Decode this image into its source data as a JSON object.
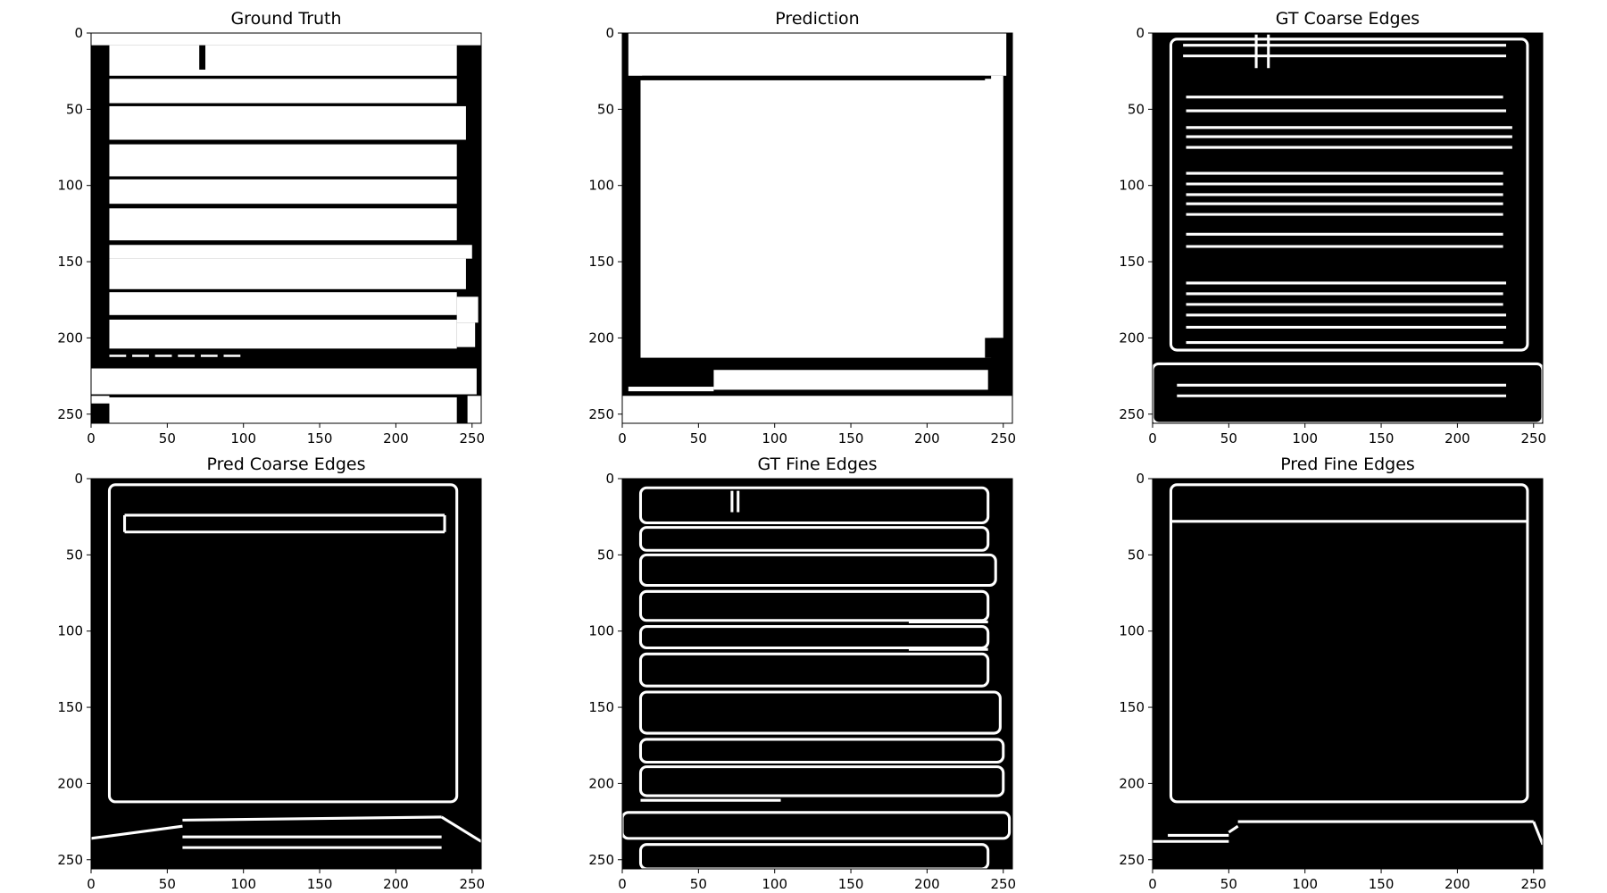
{
  "figure": {
    "background": "#ffffff",
    "image_colors": {
      "background": "#000000",
      "foreground": "#ffffff"
    }
  },
  "chart_data": [
    {
      "type": "heatmap",
      "title": "Ground Truth",
      "xlabel": "",
      "ylabel": "",
      "xlim": [
        0,
        256
      ],
      "ylim": [
        256,
        0
      ],
      "x_ticks": [
        "0",
        "50",
        "100",
        "150",
        "200",
        "250"
      ],
      "y_ticks": [
        "0",
        "50",
        "100",
        "150",
        "200",
        "250"
      ],
      "mode": "fill",
      "regions": [
        [
          0,
          0,
          256,
          8
        ],
        [
          12,
          8,
          240,
          28
        ],
        [
          12,
          30,
          240,
          46
        ],
        [
          12,
          48,
          246,
          70
        ],
        [
          12,
          73,
          240,
          94
        ],
        [
          12,
          96,
          240,
          112
        ],
        [
          12,
          115,
          240,
          136
        ],
        [
          12,
          139,
          250,
          148
        ],
        [
          12,
          148,
          246,
          168
        ],
        [
          12,
          170,
          240,
          185
        ],
        [
          12,
          188,
          240,
          207
        ],
        [
          240,
          173,
          254,
          190
        ],
        [
          240,
          190,
          252,
          206
        ],
        [
          0,
          220,
          253,
          237
        ],
        [
          12,
          239,
          240,
          256
        ],
        [
          0,
          238,
          12,
          243
        ],
        [
          247,
          238,
          256,
          256
        ]
      ],
      "holes": [
        [
          71,
          8,
          75,
          24
        ]
      ],
      "dashes": {
        "y": 211,
        "x_start": 12,
        "x_end": 102,
        "dash": 11,
        "gap": 4
      }
    },
    {
      "type": "heatmap",
      "title": "Prediction",
      "xlabel": "",
      "ylabel": "",
      "xlim": [
        0,
        256
      ],
      "ylim": [
        256,
        0
      ],
      "x_ticks": [
        "0",
        "50",
        "100",
        "150",
        "200",
        "250"
      ],
      "y_ticks": [
        "0",
        "50",
        "100",
        "150",
        "200",
        "250"
      ],
      "mode": "fill",
      "regions": [
        [
          4,
          0,
          252,
          28
        ],
        [
          12,
          31,
          242,
          213
        ],
        [
          238,
          28,
          250,
          200
        ],
        [
          6,
          0,
          12,
          20
        ],
        [
          60,
          221,
          240,
          234
        ],
        [
          4,
          232,
          60,
          235
        ],
        [
          0,
          238,
          256,
          256
        ]
      ],
      "holes": [
        [
          13,
          28,
          242,
          30
        ],
        [
          238,
          200,
          256,
          213
        ]
      ]
    },
    {
      "type": "heatmap",
      "title": "GT Coarse Edges",
      "xlabel": "",
      "ylabel": "",
      "xlim": [
        0,
        256
      ],
      "ylim": [
        256,
        0
      ],
      "x_ticks": [
        "0",
        "50",
        "100",
        "150",
        "200",
        "250"
      ],
      "y_ticks": [
        "0",
        "50",
        "100",
        "150",
        "200",
        "250"
      ],
      "mode": "edges",
      "stroke": 3,
      "loops": [
        [
          12,
          4,
          246,
          208
        ],
        [
          0,
          217,
          256,
          256
        ]
      ],
      "lines": [
        [
          20,
          8,
          232,
          8
        ],
        [
          20,
          15,
          232,
          15
        ],
        [
          22,
          42,
          230,
          42
        ],
        [
          22,
          51,
          232,
          51
        ],
        [
          22,
          62,
          236,
          62
        ],
        [
          22,
          68,
          236,
          68
        ],
        [
          22,
          75,
          236,
          75
        ],
        [
          22,
          92,
          230,
          92
        ],
        [
          22,
          99,
          230,
          99
        ],
        [
          22,
          106,
          230,
          106
        ],
        [
          22,
          112,
          230,
          112
        ],
        [
          22,
          119,
          230,
          119
        ],
        [
          22,
          132,
          230,
          132
        ],
        [
          22,
          140,
          230,
          140
        ],
        [
          22,
          164,
          232,
          164
        ],
        [
          22,
          171,
          230,
          171
        ],
        [
          22,
          178,
          230,
          178
        ],
        [
          22,
          185,
          232,
          185
        ],
        [
          22,
          193,
          232,
          193
        ],
        [
          22,
          203,
          230,
          203
        ],
        [
          16,
          231,
          232,
          231
        ],
        [
          16,
          238,
          232,
          238
        ],
        [
          76,
          1,
          76,
          23
        ],
        [
          68,
          1,
          68,
          23
        ]
      ]
    },
    {
      "type": "heatmap",
      "title": "Pred Coarse Edges",
      "xlabel": "",
      "ylabel": "",
      "xlim": [
        0,
        256
      ],
      "ylim": [
        256,
        0
      ],
      "x_ticks": [
        "0",
        "50",
        "100",
        "150",
        "200",
        "250"
      ],
      "y_ticks": [
        "0",
        "50",
        "100",
        "150",
        "200",
        "250"
      ],
      "mode": "edges",
      "stroke": 3,
      "loops": [
        [
          12,
          4,
          240,
          212
        ]
      ],
      "lines": [
        [
          22,
          24,
          232,
          24
        ],
        [
          22,
          35,
          232,
          35
        ],
        [
          22,
          24,
          22,
          35
        ],
        [
          232,
          24,
          232,
          35
        ],
        [
          0,
          236,
          60,
          228
        ],
        [
          60,
          224,
          230,
          222
        ],
        [
          230,
          222,
          256,
          238
        ],
        [
          60,
          242,
          230,
          242
        ],
        [
          60,
          235,
          230,
          235
        ]
      ]
    },
    {
      "type": "heatmap",
      "title": "GT Fine Edges",
      "xlabel": "",
      "ylabel": "",
      "xlim": [
        0,
        256
      ],
      "ylim": [
        256,
        0
      ],
      "x_ticks": [
        "0",
        "50",
        "100",
        "150",
        "200",
        "250"
      ],
      "y_ticks": [
        "0",
        "50",
        "100",
        "150",
        "200",
        "250"
      ],
      "mode": "edges",
      "stroke": 3,
      "loops": [
        [
          12,
          6,
          240,
          29
        ],
        [
          12,
          32,
          240,
          47
        ],
        [
          12,
          50,
          245,
          70
        ],
        [
          12,
          74,
          240,
          93
        ],
        [
          12,
          97,
          240,
          111
        ],
        [
          12,
          115,
          240,
          136
        ],
        [
          12,
          140,
          248,
          167
        ],
        [
          12,
          171,
          250,
          186
        ],
        [
          12,
          189,
          250,
          208
        ],
        [
          0,
          219,
          254,
          236
        ],
        [
          12,
          240,
          240,
          256
        ]
      ],
      "lines": [
        [
          72,
          8,
          72,
          22
        ],
        [
          76,
          8,
          76,
          22
        ],
        [
          12,
          211,
          104,
          211
        ],
        [
          188,
          94,
          240,
          94
        ],
        [
          188,
          112,
          240,
          112
        ]
      ]
    },
    {
      "type": "heatmap",
      "title": "Pred Fine Edges",
      "xlabel": "",
      "ylabel": "",
      "xlim": [
        0,
        256
      ],
      "ylim": [
        256,
        0
      ],
      "x_ticks": [
        "0",
        "50",
        "100",
        "150",
        "200",
        "250"
      ],
      "y_ticks": [
        "0",
        "50",
        "100",
        "150",
        "200",
        "250"
      ],
      "mode": "edges",
      "stroke": 3,
      "loops": [
        [
          12,
          4,
          246,
          212
        ]
      ],
      "lines": [
        [
          12,
          28,
          246,
          28
        ],
        [
          0,
          238,
          50,
          238
        ],
        [
          50,
          232,
          56,
          228
        ],
        [
          56,
          225,
          250,
          225
        ],
        [
          250,
          225,
          256,
          240
        ],
        [
          10,
          234,
          50,
          234
        ]
      ]
    }
  ]
}
